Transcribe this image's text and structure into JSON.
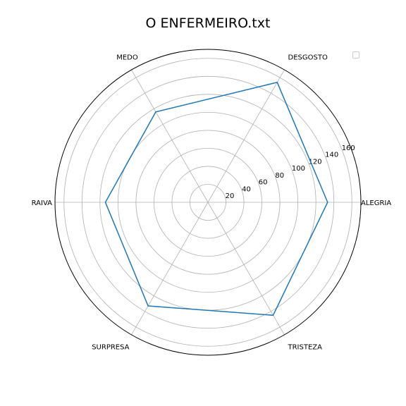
{
  "chart_data": {
    "type": "radar",
    "title": "O ENFERMEIRO.txt",
    "categories": [
      "ALEGRIA",
      "DESGOSTO",
      "MEDO",
      "RAIVA",
      "SURPRESA",
      "TRISTEZA"
    ],
    "series": [
      {
        "values": [
          133,
          154,
          116,
          114,
          133,
          145
        ],
        "color": "#1f77b4"
      }
    ],
    "r_ticks": [
      20,
      40,
      60,
      80,
      100,
      120,
      140,
      160
    ],
    "rlim": [
      0,
      170
    ],
    "grid": true,
    "legend": "top-right"
  }
}
